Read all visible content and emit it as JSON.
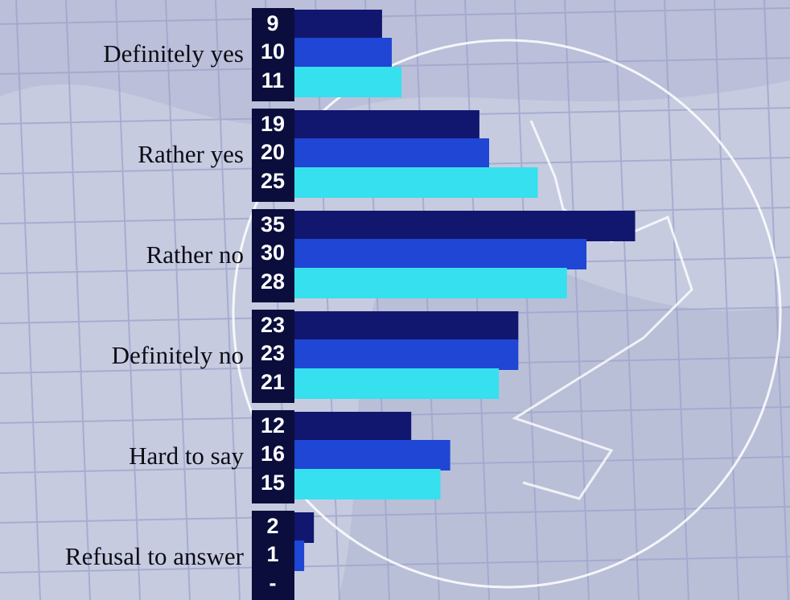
{
  "chart_data": {
    "type": "bar",
    "orientation": "horizontal",
    "categories": [
      "Definitely yes",
      "Rather yes",
      "Rather no",
      "Definitely no",
      "Hard to say",
      "Refusal to answer"
    ],
    "series": [
      {
        "color": "#11166e",
        "values": [
          9,
          19,
          35,
          23,
          12,
          2
        ]
      },
      {
        "color": "#1f46d4",
        "values": [
          10,
          20,
          30,
          23,
          16,
          1
        ]
      },
      {
        "color": "#36e0ee",
        "values": [
          11,
          25,
          28,
          21,
          15,
          null
        ],
        "value_labels": [
          "11",
          "25",
          "28",
          "21",
          "15",
          "-"
        ]
      }
    ]
  }
}
